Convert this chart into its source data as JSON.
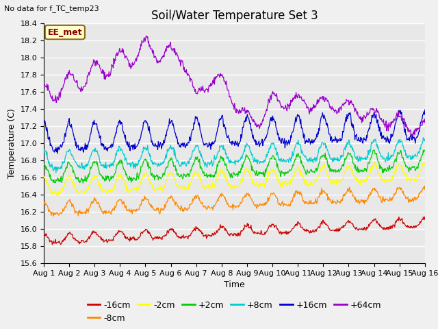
{
  "title": "Soil/Water Temperature Set 3",
  "no_data_text": "No data for f_TC_temp23",
  "xlabel": "Time",
  "ylabel": "Temperature (C)",
  "ylim": [
    15.6,
    18.4
  ],
  "yticks": [
    15.6,
    15.8,
    16.0,
    16.2,
    16.4,
    16.6,
    16.8,
    17.0,
    17.2,
    17.4,
    17.6,
    17.8,
    18.0,
    18.2,
    18.4
  ],
  "xtick_labels": [
    "Aug 1",
    "Aug 2",
    "Aug 3",
    "Aug 4",
    "Aug 5",
    "Aug 6",
    "Aug 7",
    "Aug 8",
    "Aug 9",
    "Aug 10",
    "Aug 11",
    "Aug 12",
    "Aug 13",
    "Aug 14",
    "Aug 15",
    "Aug 16"
  ],
  "legend_box_label": "EE_met",
  "series": [
    {
      "label": "-16cm",
      "color": "#cc0000",
      "base": 15.87,
      "trend": 0.013,
      "amp": 0.05,
      "noise": 0.012,
      "period": 1.0
    },
    {
      "label": "-8cm",
      "color": "#ff8800",
      "base": 16.22,
      "trend": 0.012,
      "amp": 0.07,
      "noise": 0.015,
      "period": 1.0
    },
    {
      "label": "-2cm",
      "color": "#ffff00",
      "base": 16.48,
      "trend": 0.011,
      "amp": 0.09,
      "noise": 0.016,
      "period": 1.0
    },
    {
      "label": "+2cm",
      "color": "#00cc00",
      "base": 16.63,
      "trend": 0.01,
      "amp": 0.1,
      "noise": 0.018,
      "period": 1.0
    },
    {
      "label": "+8cm",
      "color": "#00cccc",
      "base": 16.78,
      "trend": 0.009,
      "amp": 0.1,
      "noise": 0.018,
      "period": 1.0
    },
    {
      "label": "+16cm",
      "color": "#0000cc",
      "base": 17.03,
      "trend": 0.009,
      "amp": 0.15,
      "noise": 0.022,
      "period": 1.0
    },
    {
      "label": "+64cm",
      "color": "#9900cc",
      "base": 17.55,
      "trend": 0.0,
      "amp": 0.08,
      "noise": 0.018,
      "period": 1.0
    }
  ],
  "bg_color": "#e8e8e8",
  "plot_bg": "#e8e8e8",
  "grid_color": "#ffffff",
  "title_fontsize": 12,
  "axis_label_fontsize": 9,
  "tick_fontsize": 8,
  "legend_label_fontsize": 9,
  "fig_bg": "#f0f0f0"
}
